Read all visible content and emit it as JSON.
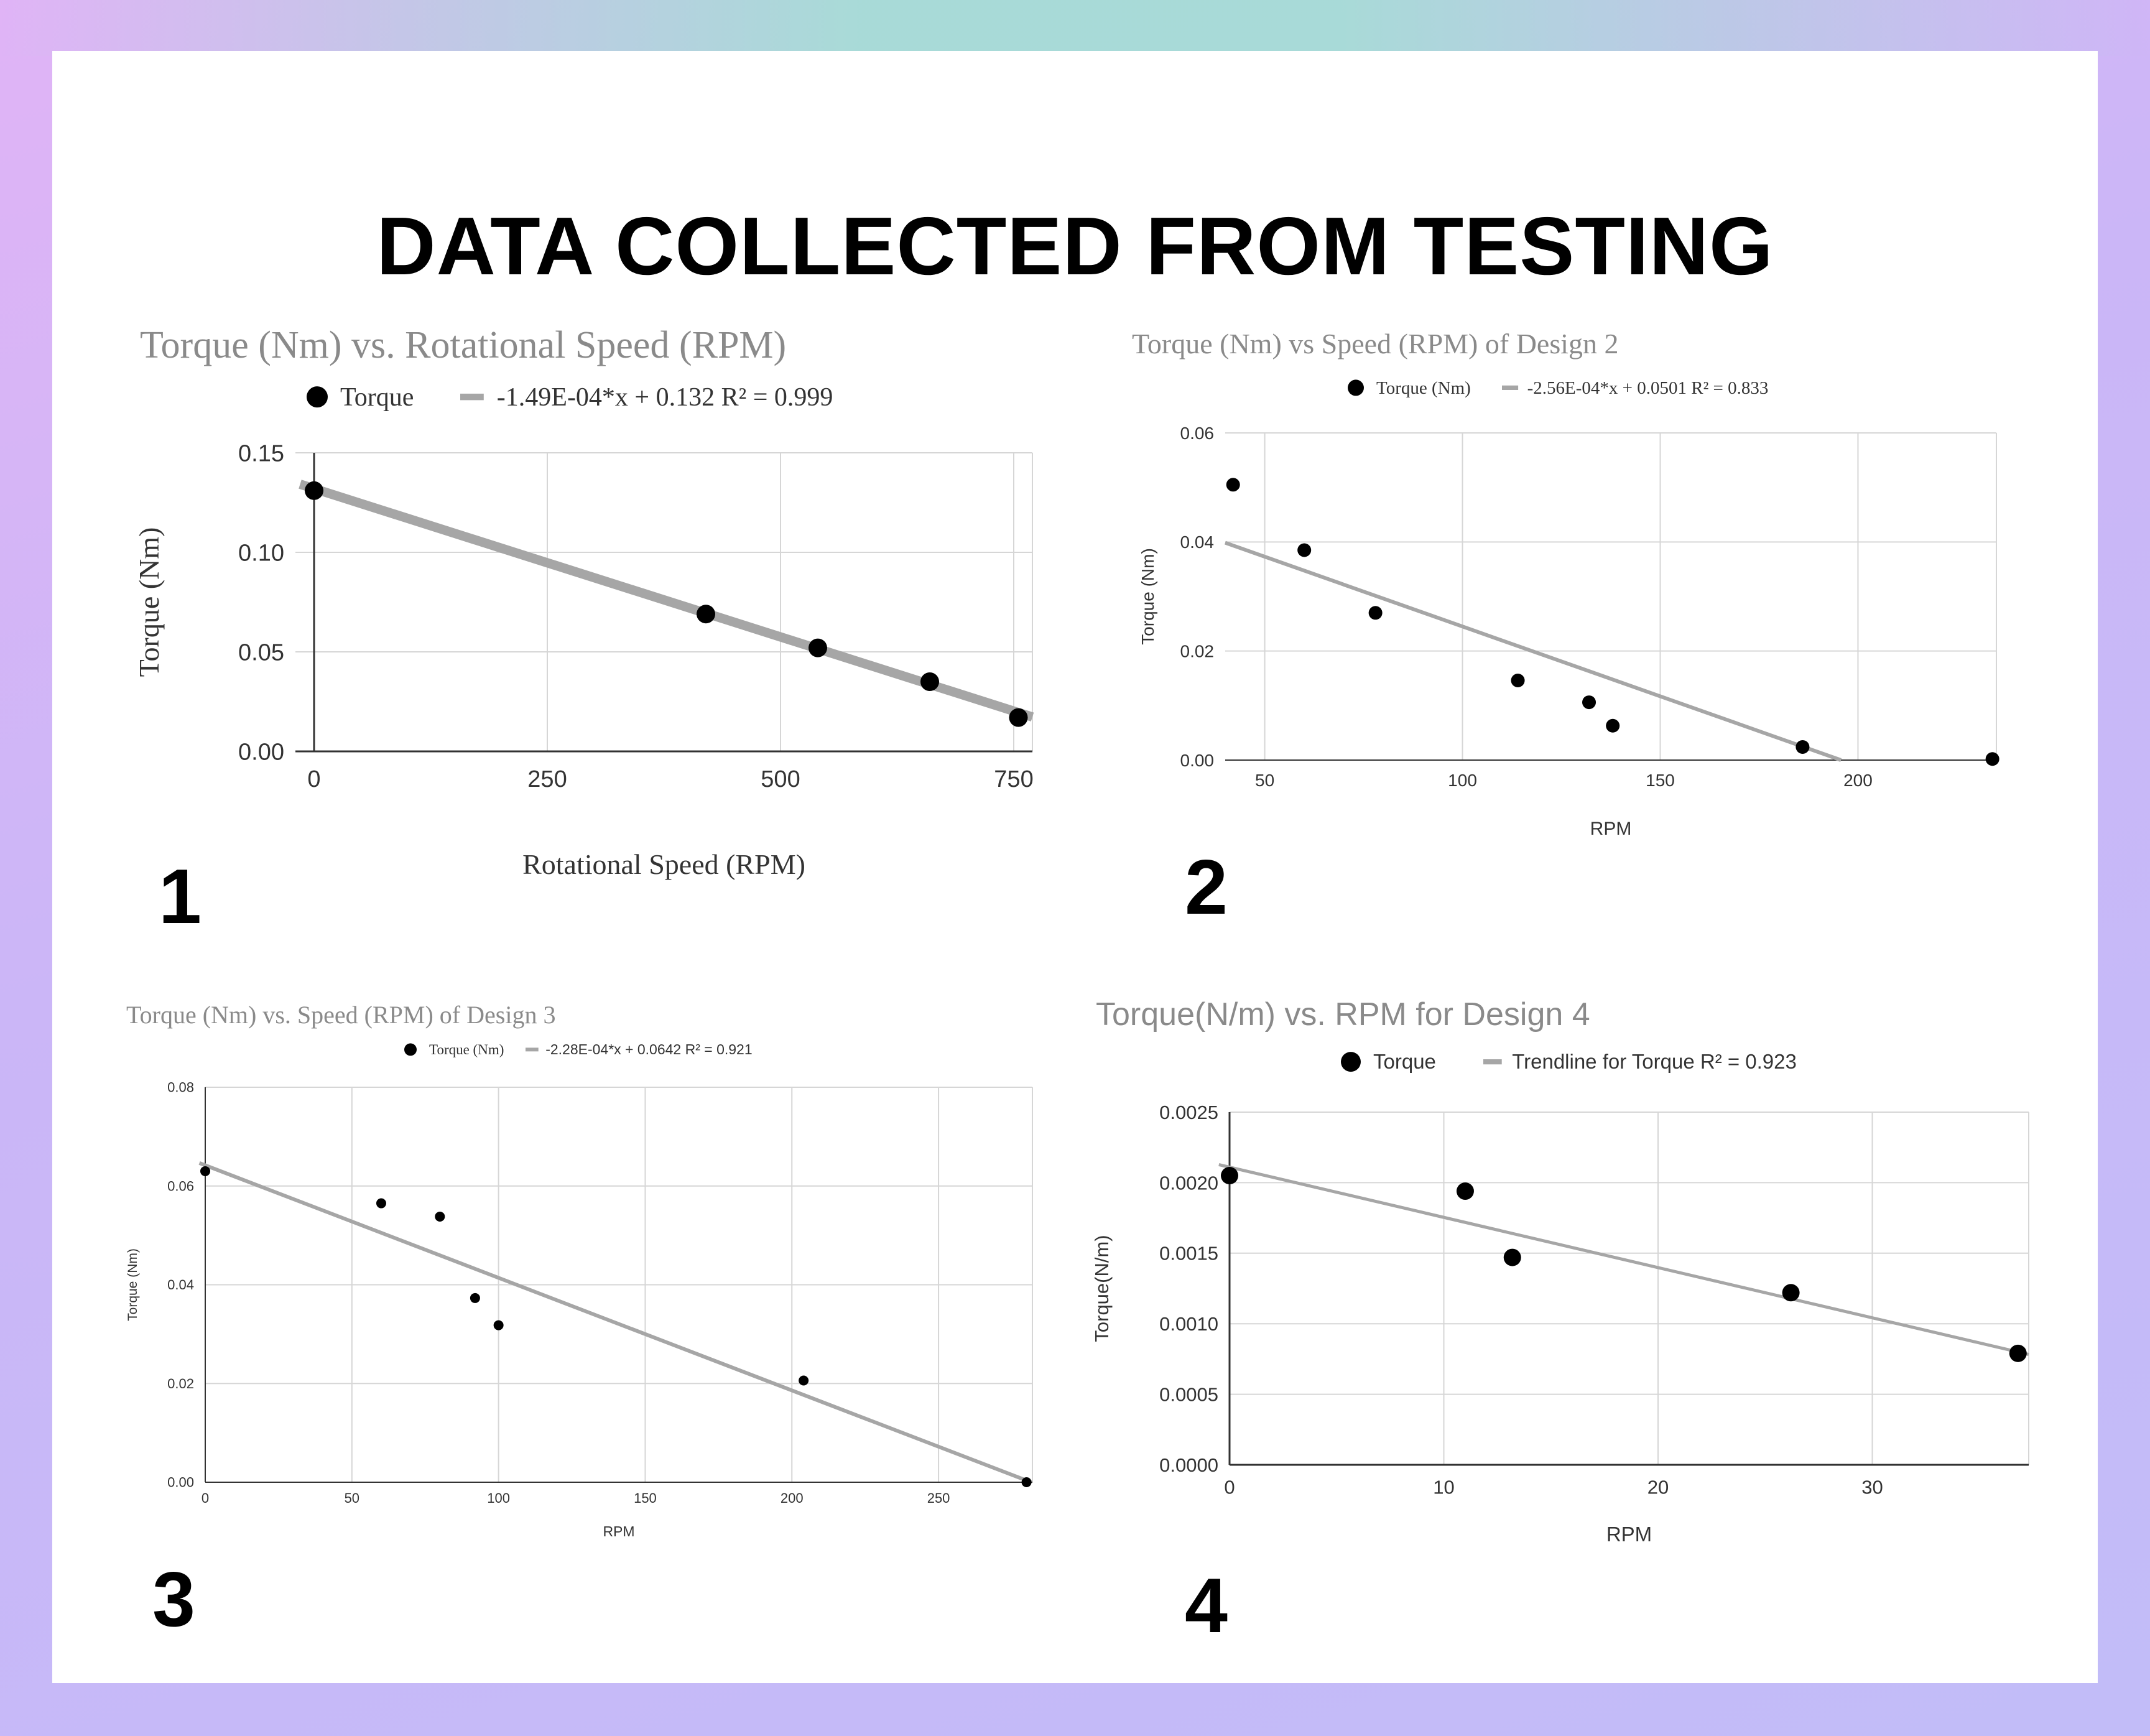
{
  "page": {
    "title": "DATA COLLECTED FROM TESTING"
  },
  "chart_data": [
    {
      "panel_number": "1",
      "type": "scatter",
      "title": "Torque (Nm) vs. Rotational Speed (RPM)",
      "xlabel": "Rotational Speed (RPM)",
      "ylabel": "Torque (Nm)",
      "xlim": [
        -20,
        770
      ],
      "ylim": [
        0,
        0.15
      ],
      "xticks": [
        0,
        250,
        500,
        750
      ],
      "xtick_labels": [
        "0",
        "250",
        "500",
        "750"
      ],
      "yticks": [
        0,
        0.05,
        0.1,
        0.15
      ],
      "ytick_labels": [
        "0.00",
        "0.05",
        "0.10",
        "0.15"
      ],
      "grid": true,
      "legend_position": "top",
      "series": [
        {
          "name": "Torque",
          "x": [
            0,
            420,
            540,
            660,
            755
          ],
          "y": [
            0.131,
            0.069,
            0.052,
            0.035,
            0.017
          ]
        }
      ],
      "trendline": {
        "label": "-1.49E-04*x + 0.132 R² = 0.999",
        "slope": -0.000149,
        "intercept": 0.132,
        "x_range": [
          -15,
          770
        ]
      },
      "colors": {
        "point": "#000000",
        "trend": "#a6a6a6",
        "title": "#8a8a8a"
      }
    },
    {
      "panel_number": "2",
      "type": "scatter",
      "title": "Torque (Nm) vs Speed (RPM) of Design 2",
      "xlabel": "RPM",
      "ylabel": "Torque (Nm)",
      "xlim": [
        40,
        235
      ],
      "ylim": [
        0,
        0.06
      ],
      "xticks": [
        50,
        100,
        150,
        200
      ],
      "xtick_labels": [
        "50",
        "100",
        "150",
        "200"
      ],
      "yticks": [
        0,
        0.02,
        0.04,
        0.06
      ],
      "ytick_labels": [
        "0.00",
        "0.02",
        "0.04",
        "0.06"
      ],
      "grid": true,
      "legend_position": "top",
      "series": [
        {
          "name": "Torque (Nm)",
          "x": [
            42,
            60,
            78,
            114,
            132,
            138,
            186,
            234
          ],
          "y": [
            0.0505,
            0.0385,
            0.027,
            0.0146,
            0.0106,
            0.0063,
            0.0024,
            0.0002
          ]
        }
      ],
      "trendline": {
        "label": "-2.56E-04*x + 0.0501 R² = 0.833",
        "slope": -0.000256,
        "intercept": 0.0501,
        "x_range": [
          40,
          195.7
        ]
      },
      "colors": {
        "point": "#000000",
        "trend": "#a6a6a6",
        "title": "#8a8a8a"
      }
    },
    {
      "panel_number": "3",
      "type": "scatter",
      "title": "Torque (Nm) vs. Speed (RPM) of Design 3",
      "xlabel": "RPM",
      "ylabel": "Torque (Nm)",
      "xlim": [
        0,
        282
      ],
      "ylim": [
        0,
        0.08
      ],
      "xticks": [
        0,
        50,
        100,
        150,
        200,
        250
      ],
      "xtick_labels": [
        "0",
        "50",
        "100",
        "150",
        "200",
        "250"
      ],
      "yticks": [
        0,
        0.02,
        0.04,
        0.06,
        0.08
      ],
      "ytick_labels": [
        "0.00",
        "0.02",
        "0.04",
        "0.06",
        "0.08"
      ],
      "grid": true,
      "legend_position": "top",
      "series": [
        {
          "name": "Torque (Nm)",
          "x": [
            0,
            60,
            80,
            92,
            100,
            204,
            280
          ],
          "y": [
            0.063,
            0.0565,
            0.0538,
            0.0373,
            0.0318,
            0.0206,
            0
          ]
        }
      ],
      "trendline": {
        "label": "-2.28E-04*x + 0.0642 R² = 0.921",
        "slope": -0.000228,
        "intercept": 0.0642,
        "x_range": [
          -2,
          281.6
        ]
      },
      "colors": {
        "point": "#000000",
        "trend": "#a6a6a6",
        "title": "#8a8a8a"
      }
    },
    {
      "panel_number": "4",
      "type": "scatter",
      "title": "Torque(N/m)  vs. RPM for Design 4",
      "xlabel": "RPM",
      "ylabel": "Torque(N/m)",
      "xlim": [
        0,
        37.3
      ],
      "ylim": [
        0,
        0.0025
      ],
      "xticks": [
        0,
        10,
        20,
        30
      ],
      "xtick_labels": [
        "0",
        "10",
        "20",
        "30"
      ],
      "yticks": [
        0,
        0.0005,
        0.001,
        0.0015,
        0.002,
        0.0025
      ],
      "ytick_labels": [
        "0.0000",
        "0.0005",
        "0.0010",
        "0.0015",
        "0.0020",
        "0.0025"
      ],
      "grid": true,
      "legend_position": "top",
      "series": [
        {
          "name": "Torque",
          "x": [
            0,
            11,
            13.2,
            26.2,
            36.8
          ],
          "y": [
            0.00205,
            0.00194,
            0.00147,
            0.00122,
            0.00079
          ]
        }
      ],
      "trendline": {
        "label": "Trendline for Torque  R² = 0.923",
        "slope": -3.56e-05,
        "intercept": 0.00211,
        "x_range": [
          -0.5,
          37.3
        ]
      },
      "colors": {
        "point": "#000000",
        "trend": "#a6a6a6",
        "title": "#8a8a8a"
      }
    }
  ]
}
